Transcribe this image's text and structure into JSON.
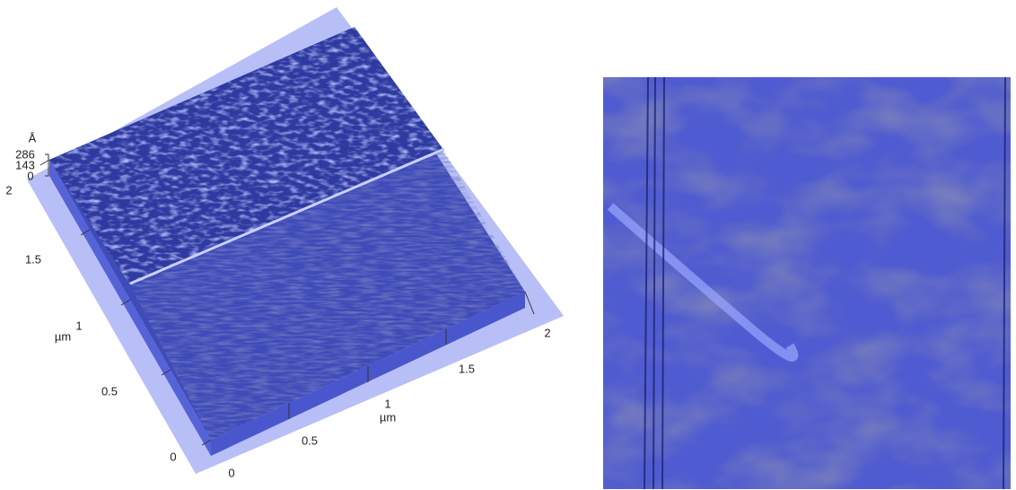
{
  "left_panel": {
    "z_axis": {
      "unit": "Å",
      "labels": [
        "286",
        "143",
        "0"
      ]
    },
    "y_axis": {
      "unit": "µm",
      "labels": [
        "2",
        "1.5",
        "1",
        "0.5",
        "0"
      ]
    },
    "x_axis": {
      "unit": "µm",
      "labels": [
        "0",
        "0.5",
        "1",
        "1.5",
        "2"
      ]
    }
  }
}
